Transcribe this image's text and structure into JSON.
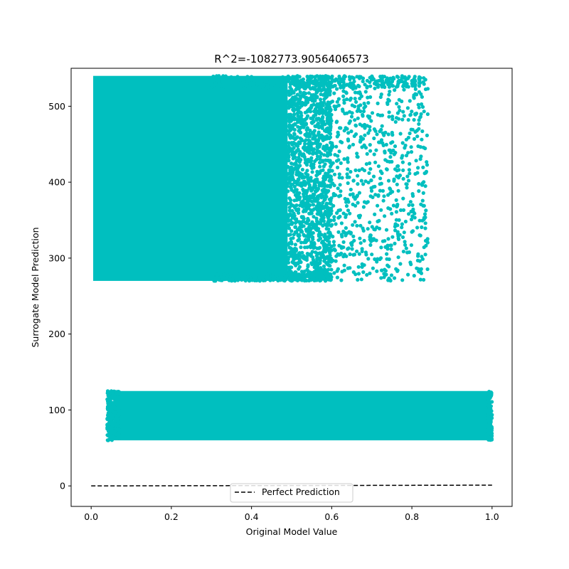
{
  "chart_data": {
    "type": "scatter",
    "title": "R^2=-1082773.9056406573",
    "xlabel": "Original Model Value",
    "ylabel": "Surrogate Model Prediction",
    "xlim": [
      -0.05,
      1.05
    ],
    "ylim": [
      -27,
      550
    ],
    "xticks": [
      0.0,
      0.2,
      0.4,
      0.6,
      0.8,
      1.0
    ],
    "xtick_labels": [
      "0.0",
      "0.2",
      "0.4",
      "0.6",
      "0.8",
      "1.0"
    ],
    "yticks": [
      0,
      100,
      200,
      300,
      400,
      500
    ],
    "ytick_labels": [
      "0",
      "100",
      "200",
      "300",
      "400",
      "500"
    ],
    "grid": false,
    "legend_position": "lower-center",
    "colors": {
      "scatter": "#00bfbf",
      "reference_line": "#000000"
    },
    "series": [
      {
        "kind": "scatter",
        "color": "#00bfbf",
        "clusters": [
          {
            "x_range": [
              0.005,
              0.84
            ],
            "y_range": [
              270,
              540
            ],
            "density": "dense for x<0.5, sparse for 0.5-0.84"
          },
          {
            "x_range": [
              0.04,
              1.0
            ],
            "y_range": [
              60,
              125
            ],
            "density": "dense throughout"
          }
        ]
      },
      {
        "kind": "line",
        "name": "Perfect Prediction",
        "style": "dashed",
        "color": "#000000",
        "x": [
          0.0,
          1.0
        ],
        "y": [
          0.0,
          1.0
        ]
      }
    ],
    "legend": [
      {
        "label": "Perfect Prediction",
        "style": "dashed",
        "color": "#000000"
      }
    ]
  }
}
